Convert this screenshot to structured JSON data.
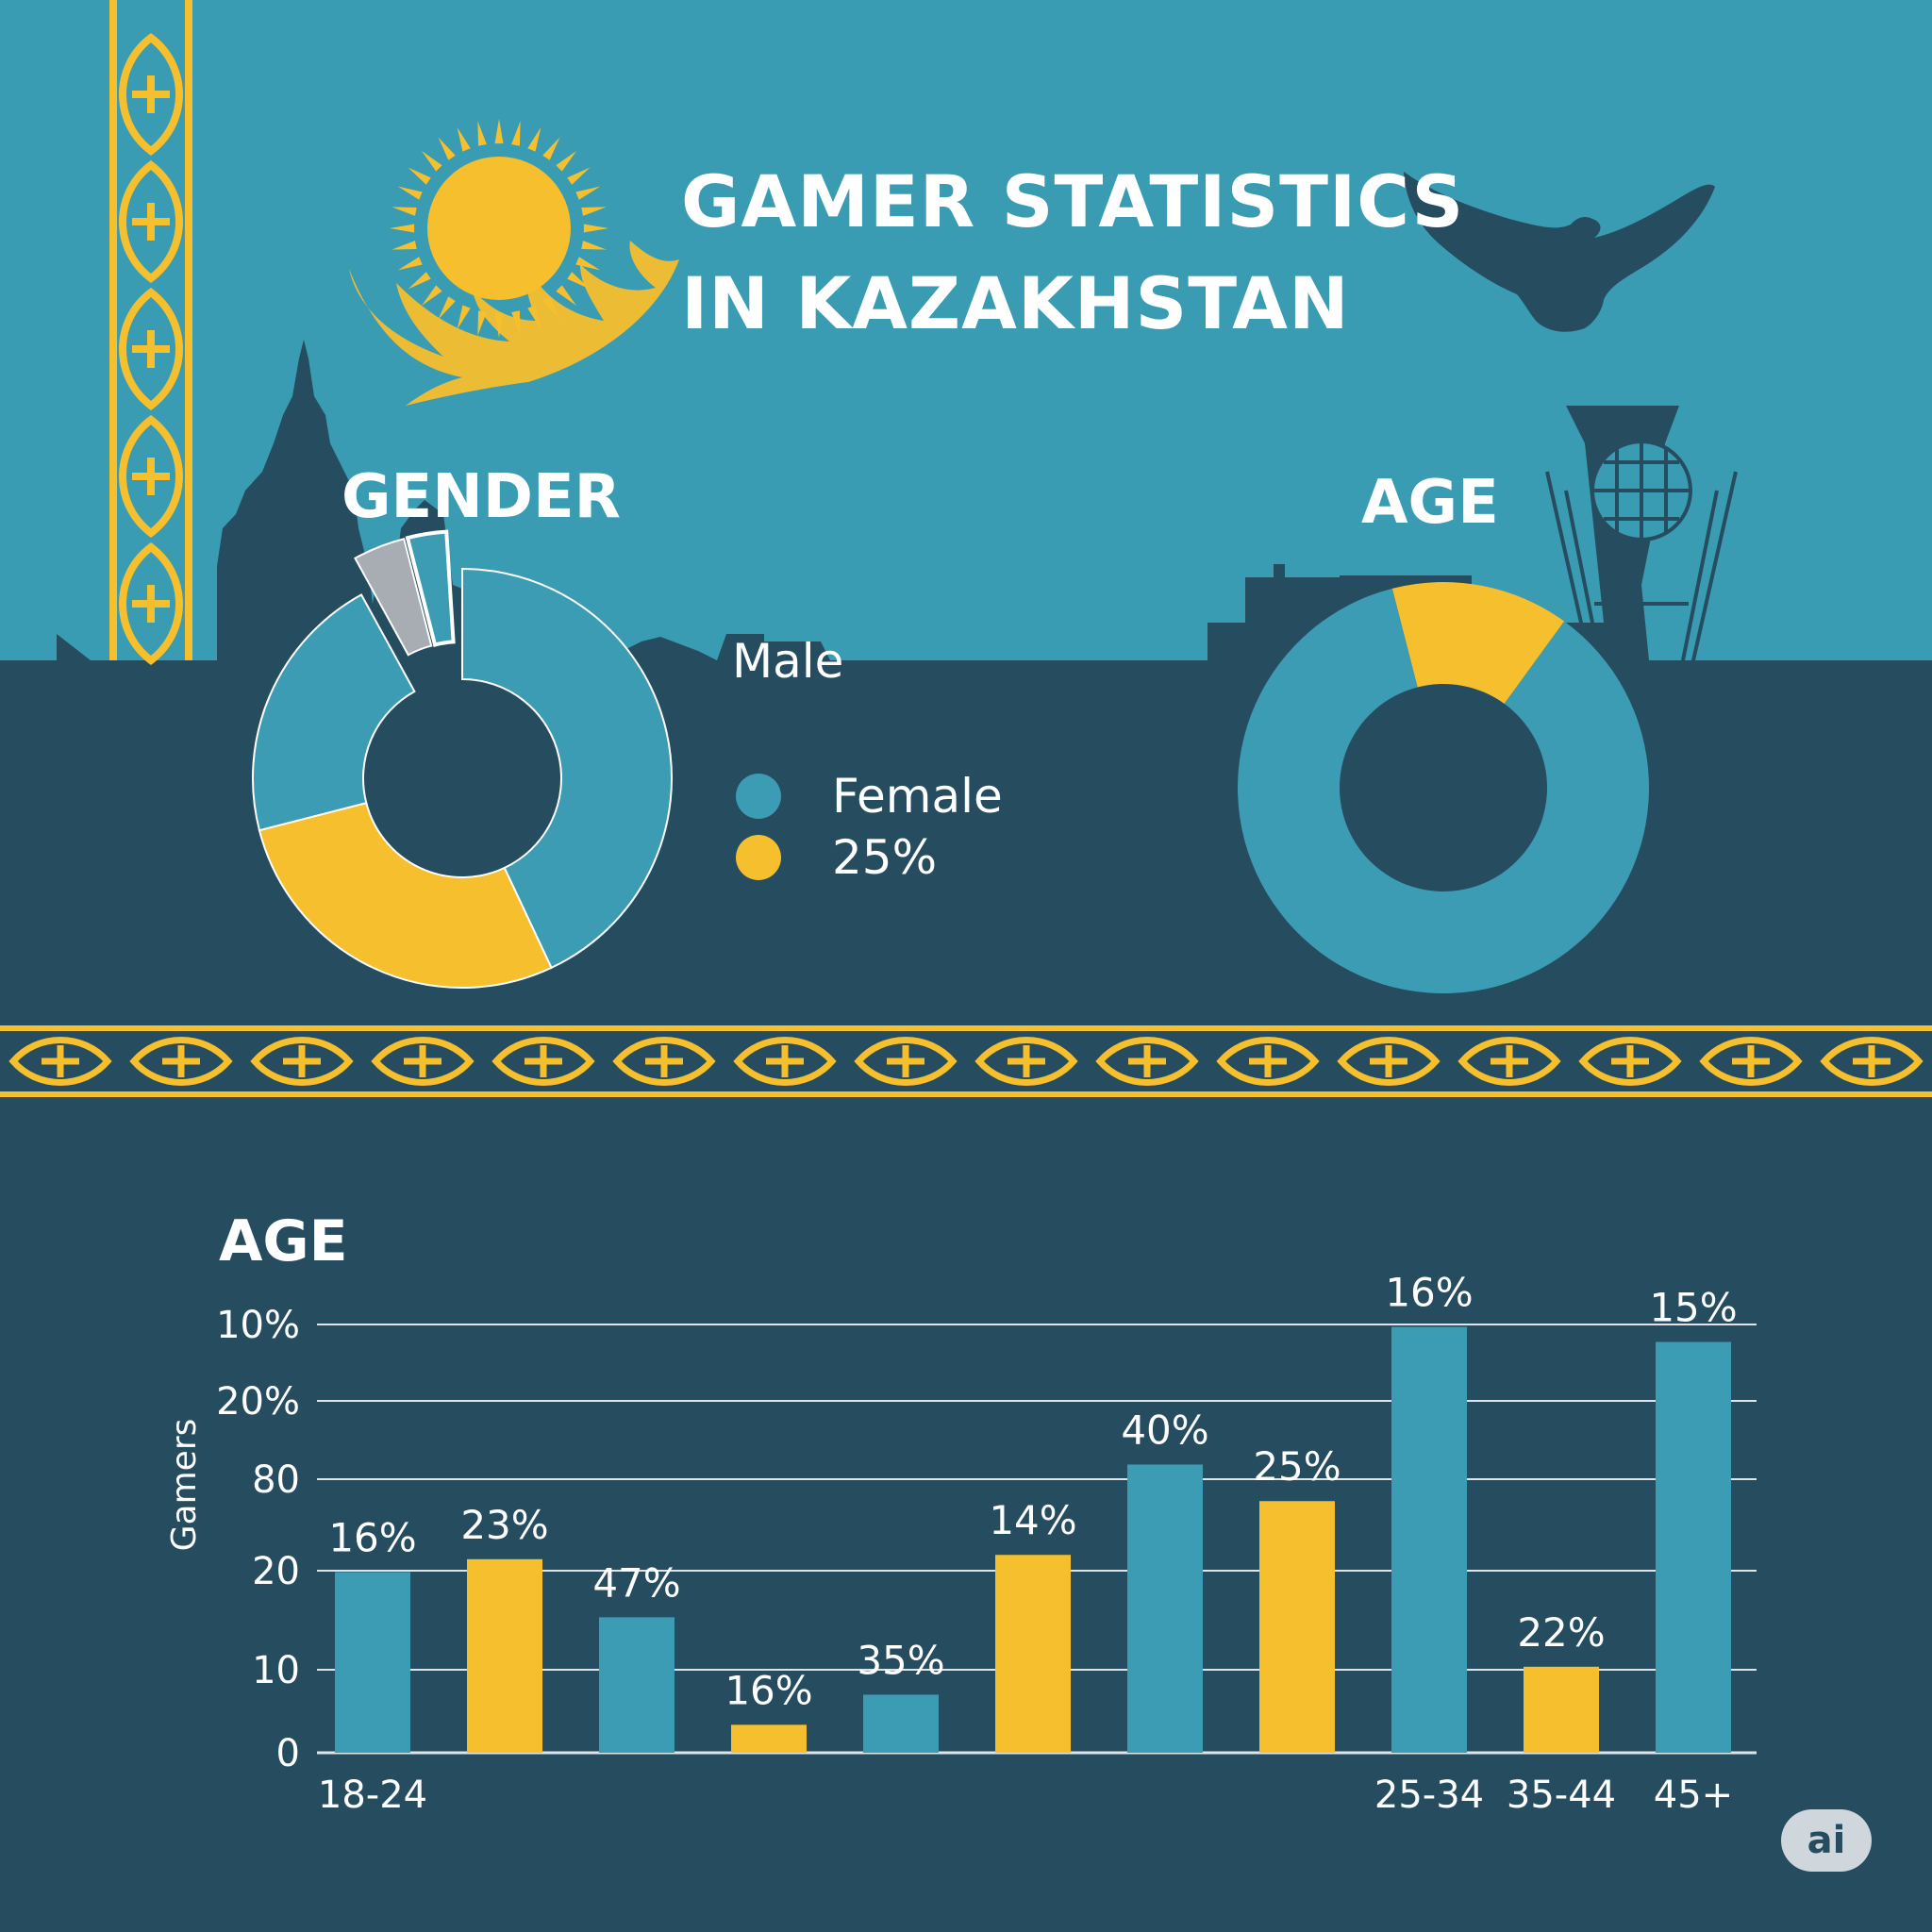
{
  "title": {
    "line1": "GAMER STATISTICS",
    "line2": "IN KAZAKHSTAN"
  },
  "colors": {
    "background_sky": "#3a9cb2",
    "background_dark": "#264c60",
    "teal": "#3c9cb3",
    "yellow": "#f6bf2d",
    "gray": "#a7adb2",
    "white": "#ffffff"
  },
  "icons": [
    "sun-emblem-icon",
    "eagle-icon",
    "ornament-column-icon",
    "ornament-border-icon",
    "skyline-icon",
    "baiterek-tower-icon"
  ],
  "gender": {
    "heading": "GENDER",
    "legend": [
      {
        "label": "Male",
        "marker": "none"
      },
      {
        "label": "Female",
        "color": "#3c9cb3"
      },
      {
        "label": "25%",
        "color": "#f6bf2d"
      }
    ]
  },
  "age_donut": {
    "heading": "AGE"
  },
  "badge": {
    "text": "ai"
  },
  "chart_data": [
    {
      "type": "pie",
      "variant": "donut",
      "heading": "GENDER",
      "slices": [
        {
          "color": "#3c9cb3",
          "share": 0.43
        },
        {
          "color": "#f6bf2d",
          "share": 0.28
        },
        {
          "color": "#3c9cb3",
          "share": 0.21
        },
        {
          "color": "#a7adb2",
          "share": 0.04,
          "exploded": true
        },
        {
          "color": "#3c9cb3",
          "share": 0.03,
          "exploded": true,
          "outline": true
        }
      ]
    },
    {
      "type": "pie",
      "variant": "donut",
      "heading": "AGE",
      "slices": [
        {
          "color": "#f6bf2d",
          "share": 0.14
        },
        {
          "color": "#3c9cb3",
          "share": 0.86
        }
      ]
    },
    {
      "type": "bar",
      "title": "AGE",
      "ylabel": "Gamers",
      "yticks": [
        "10%",
        "20%",
        "80",
        "20",
        "10",
        "0"
      ],
      "xtick_labels": [
        {
          "text": "18-24",
          "bar": 0
        },
        {
          "text": "25-34",
          "bar": 8
        },
        {
          "text": "35-44",
          "bar": 9
        },
        {
          "text": "45+",
          "bar": 10
        }
      ],
      "bars": [
        {
          "label": "16%",
          "color": "teal",
          "level": 0.42
        },
        {
          "label": "23%",
          "color": "yellow",
          "level": 0.45
        },
        {
          "label": "47%",
          "color": "teal",
          "level": 0.315
        },
        {
          "label": "16%",
          "color": "yellow",
          "level": 0.065
        },
        {
          "label": "35%",
          "color": "teal",
          "level": 0.135
        },
        {
          "label": "14%",
          "color": "yellow",
          "level": 0.46
        },
        {
          "label": "40%",
          "color": "teal",
          "level": 0.67
        },
        {
          "label": "25%",
          "color": "yellow",
          "level": 0.585
        },
        {
          "label": "16%",
          "color": "teal",
          "level": 0.99
        },
        {
          "label": "22%",
          "color": "yellow",
          "level": 0.2
        },
        {
          "label": "15%",
          "color": "teal",
          "level": 0.955
        }
      ],
      "grid": true
    }
  ]
}
